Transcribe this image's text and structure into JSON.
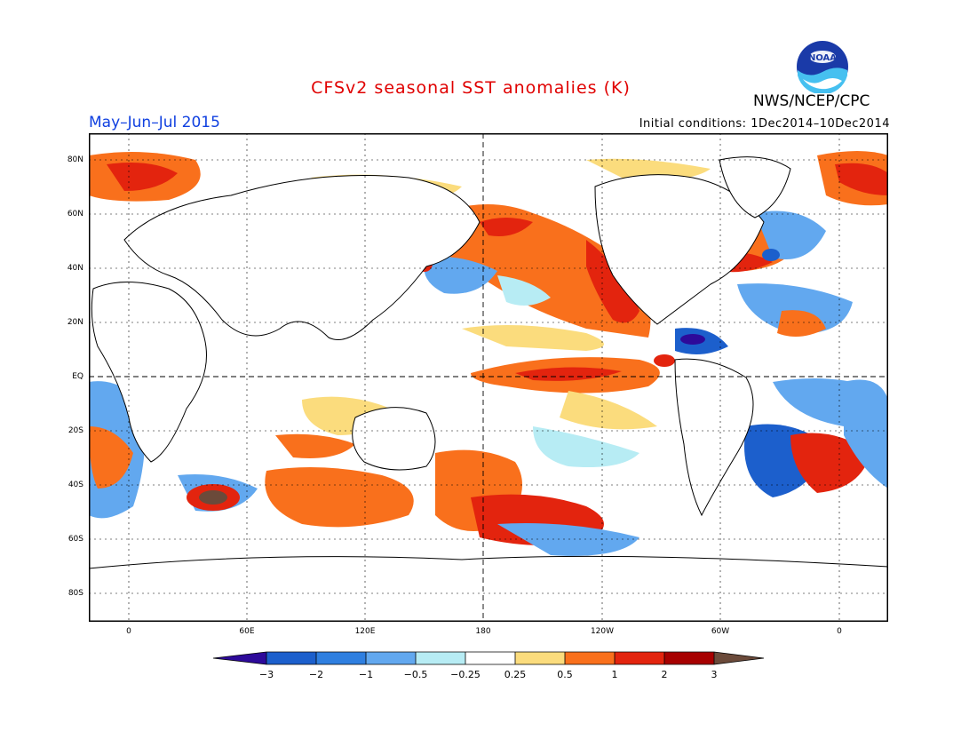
{
  "header": {
    "title": "CFSv2 seasonal SST anomalies (K)",
    "agency": "NWS/NCEP/CPC",
    "period": "May–Jun–Jul 2015",
    "initial_conditions": "Initial conditions: 1Dec2014–10Dec2014",
    "logo_text": "NOAA"
  },
  "map": {
    "lat_labels": [
      "80N",
      "60N",
      "40N",
      "20N",
      "EQ",
      "20S",
      "40S",
      "60S",
      "80S"
    ],
    "lon_labels": [
      "0",
      "60E",
      "120E",
      "180",
      "120W",
      "60W",
      "0"
    ]
  },
  "colorbar": {
    "labels": [
      "−3",
      "−2",
      "−1",
      "−0.5",
      "−0.25",
      "0.25",
      "0.5",
      "1",
      "2",
      "3"
    ],
    "colors": {
      "below_min": "#2d0a9a",
      "c1": "#1c5fcc",
      "c2": "#2f7fe0",
      "c3": "#62a8ef",
      "c4": "#b7ecf4",
      "c5": "#ffffff",
      "c6": "#fbdc7d",
      "c7": "#f9701c",
      "c8": "#e3240e",
      "c9": "#a70000",
      "above_max": "#6b4a3a"
    }
  }
}
